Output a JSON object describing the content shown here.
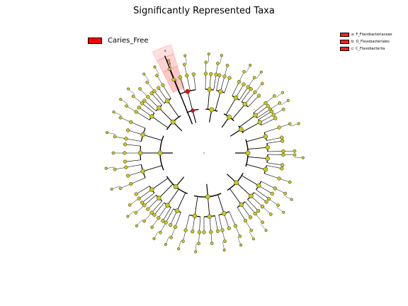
{
  "title": "Significantly Represented Taxa",
  "legend": {
    "label": "Caries_Free",
    "color": "#ff0000"
  },
  "abbreviations": [
    {
      "key": "a",
      "text": "a: F_Flavobacteriaceae"
    },
    {
      "key": "b",
      "text": "b: O_Flavobacteriales"
    },
    {
      "key": "c",
      "text": "c: C_Flavobacteriia"
    }
  ],
  "highlight_labels": [
    "c",
    "b",
    "a"
  ],
  "colors": {
    "node": "#c8c81c",
    "node_enriched": "#ff0000",
    "highlight_shade": "#ff8080",
    "edge": "#000000"
  }
}
